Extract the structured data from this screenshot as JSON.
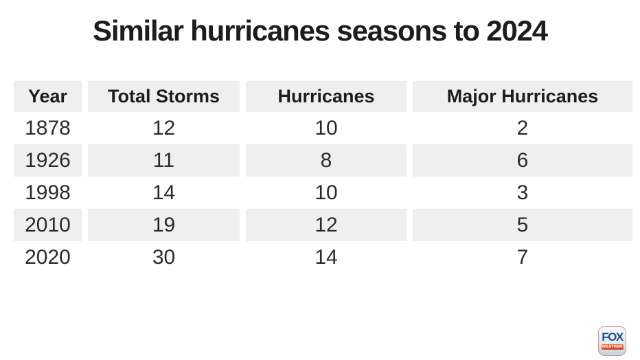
{
  "title": "Similar hurricanes seasons to 2024",
  "table": {
    "columns": [
      "Year",
      "Total Storms",
      "Hurricanes",
      "Major Hurricanes"
    ],
    "rows": [
      [
        "1878",
        "12",
        "10",
        "2"
      ],
      [
        "1926",
        "11",
        "8",
        "6"
      ],
      [
        "1998",
        "14",
        "10",
        "3"
      ],
      [
        "2010",
        "19",
        "12",
        "5"
      ],
      [
        "2020",
        "30",
        "14",
        "7"
      ]
    ]
  },
  "logo": {
    "brand": "FOX",
    "sub": "WEATHER"
  },
  "colors": {
    "row_shade": "#f0efef",
    "title_text": "#1d1d20",
    "cell_text": "#2a2a2c",
    "logo_navy": "#1d4a8f",
    "logo_orange": "#c93b1e"
  },
  "chart_data": {
    "type": "table",
    "title": "Similar hurricanes seasons to 2024",
    "columns": [
      "Year",
      "Total Storms",
      "Hurricanes",
      "Major Hurricanes"
    ],
    "rows": [
      [
        1878,
        12,
        10,
        2
      ],
      [
        1926,
        11,
        8,
        6
      ],
      [
        1998,
        14,
        10,
        3
      ],
      [
        2010,
        19,
        12,
        5
      ],
      [
        2020,
        30,
        14,
        7
      ]
    ],
    "layout": {
      "row_striping": "alternating gray/white starting white",
      "alignment": "center"
    }
  }
}
